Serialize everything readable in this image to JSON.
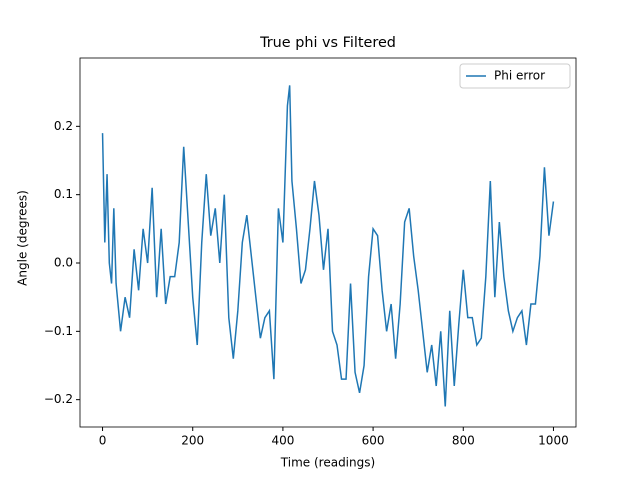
{
  "chart_data": {
    "type": "line",
    "title": "True phi vs Filtered",
    "xlabel": "Time (readings)",
    "ylabel": "Angle (degrees)",
    "x": [
      0,
      5,
      10,
      15,
      20,
      25,
      30,
      40,
      50,
      60,
      70,
      80,
      90,
      100,
      110,
      120,
      130,
      140,
      150,
      160,
      170,
      180,
      190,
      200,
      210,
      220,
      230,
      240,
      250,
      260,
      270,
      280,
      290,
      300,
      310,
      320,
      330,
      340,
      350,
      360,
      370,
      380,
      390,
      400,
      410,
      415,
      420,
      430,
      440,
      450,
      460,
      470,
      480,
      490,
      500,
      510,
      520,
      530,
      540,
      550,
      560,
      570,
      580,
      590,
      600,
      610,
      620,
      630,
      640,
      650,
      660,
      670,
      680,
      690,
      700,
      710,
      720,
      730,
      740,
      750,
      760,
      770,
      780,
      790,
      800,
      810,
      820,
      830,
      840,
      850,
      860,
      870,
      880,
      890,
      900,
      910,
      920,
      930,
      940,
      950,
      960,
      970,
      980,
      990,
      1000
    ],
    "series": [
      {
        "name": "Phi error",
        "color": "#1f77b4",
        "values": [
          0.19,
          0.03,
          0.13,
          0.0,
          -0.03,
          0.08,
          -0.03,
          -0.1,
          -0.05,
          -0.08,
          0.02,
          -0.04,
          0.05,
          0.0,
          0.11,
          -0.05,
          0.05,
          -0.06,
          -0.02,
          -0.02,
          0.03,
          0.17,
          0.06,
          -0.05,
          -0.12,
          0.03,
          0.13,
          0.04,
          0.08,
          0.0,
          0.1,
          -0.08,
          -0.14,
          -0.07,
          0.03,
          0.07,
          0.01,
          -0.05,
          -0.11,
          -0.08,
          -0.07,
          -0.17,
          0.08,
          0.03,
          0.23,
          0.26,
          0.12,
          0.05,
          -0.03,
          -0.01,
          0.05,
          0.12,
          0.07,
          -0.01,
          0.05,
          -0.1,
          -0.12,
          -0.17,
          -0.17,
          -0.03,
          -0.16,
          -0.19,
          -0.15,
          -0.02,
          0.05,
          0.04,
          -0.04,
          -0.1,
          -0.06,
          -0.14,
          -0.06,
          0.06,
          0.08,
          0.01,
          -0.04,
          -0.1,
          -0.16,
          -0.12,
          -0.18,
          -0.1,
          -0.21,
          -0.07,
          -0.18,
          -0.09,
          -0.01,
          -0.08,
          -0.08,
          -0.12,
          -0.11,
          -0.02,
          0.12,
          -0.05,
          0.06,
          -0.02,
          -0.07,
          -0.1,
          -0.08,
          -0.07,
          -0.12,
          -0.06,
          -0.06,
          0.01,
          0.14,
          0.04,
          0.09
        ]
      }
    ],
    "xlim": [
      -50,
      1050
    ],
    "ylim": [
      -0.24,
      0.3
    ],
    "xticks": [
      0,
      200,
      400,
      600,
      800,
      1000
    ],
    "yticks": [
      {
        "value": -0.2,
        "label": "−0.2"
      },
      {
        "value": -0.1,
        "label": "−0.1"
      },
      {
        "value": 0.0,
        "label": "0.0"
      },
      0.1,
      0.2
    ],
    "legend": "upper right"
  }
}
